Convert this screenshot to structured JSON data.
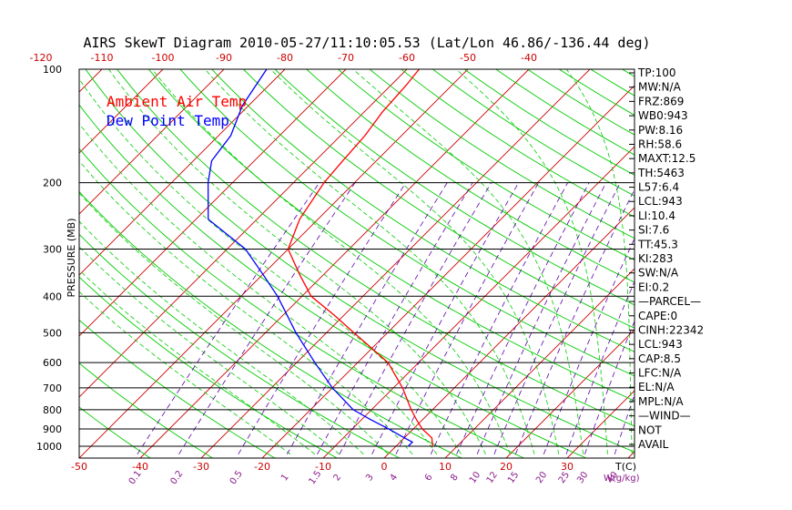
{
  "chart_data": {
    "type": "line",
    "title": "AIRS SkewT Diagram 2010-05-27/11:10:05.53 (Lat/Lon 46.86/-136.44 deg)",
    "ylabel": "PRESSURE (MB)",
    "bottom_axis_label": "T(C)",
    "mixing_ratio_label": "W(g/kg)",
    "y_scale": "log",
    "ylim": [
      1050,
      100
    ],
    "grid": true,
    "pressure_ticks": [
      {
        "p": 100,
        "label": "100"
      },
      {
        "p": 200,
        "label": "200"
      },
      {
        "p": 300,
        "label": "300"
      },
      {
        "p": 400,
        "label": "400"
      },
      {
        "p": 500,
        "label": "500"
      },
      {
        "p": 600,
        "label": "600"
      },
      {
        "p": 700,
        "label": "700"
      },
      {
        "p": 800,
        "label": "800"
      },
      {
        "p": 900,
        "label": "900"
      },
      {
        "p": 1000,
        "label": "1000"
      }
    ],
    "bottom_temp_ticks": [
      "-50",
      "-40",
      "-30",
      "-20",
      "-10",
      "0",
      "10",
      "20",
      "30"
    ],
    "top_temp_ticks": [
      "-120",
      "-110",
      "-100",
      "-90",
      "-80",
      "-70",
      "-60",
      "-50",
      "-40"
    ],
    "mixing_ratio_ticks": [
      "0.1",
      "0.2",
      "0.5",
      "1",
      "1.5",
      "2",
      "3",
      "4",
      "6",
      "8",
      "10",
      "12",
      "15",
      "20",
      "25",
      "30",
      "40"
    ],
    "legend": [
      {
        "name": "Ambient Air Temp",
        "color": "#ff0000"
      },
      {
        "name": "Dew Point Temp",
        "color": "#0000ff"
      }
    ],
    "series": [
      {
        "name": "Ambient Air Temp",
        "color": "#ff0000",
        "points": [
          {
            "p": 1000,
            "t": 6
          },
          {
            "p": 950,
            "t": 4.5
          },
          {
            "p": 900,
            "t": 1.5
          },
          {
            "p": 850,
            "t": -1
          },
          {
            "p": 800,
            "t": -3.5
          },
          {
            "p": 700,
            "t": -8.5
          },
          {
            "p": 600,
            "t": -15
          },
          {
            "p": 550,
            "t": -20
          },
          {
            "p": 500,
            "t": -25.5
          },
          {
            "p": 450,
            "t": -31.5
          },
          {
            "p": 400,
            "t": -38.5
          },
          {
            "p": 350,
            "t": -44
          },
          {
            "p": 300,
            "t": -50
          },
          {
            "p": 250,
            "t": -53
          },
          {
            "p": 200,
            "t": -55
          },
          {
            "p": 175,
            "t": -55.5
          },
          {
            "p": 150,
            "t": -56
          },
          {
            "p": 130,
            "t": -57
          },
          {
            "p": 110,
            "t": -57.5
          },
          {
            "p": 100,
            "t": -58
          }
        ]
      },
      {
        "name": "Dew Point Temp",
        "color": "#0000ff",
        "points": [
          {
            "p": 1000,
            "t": 2
          },
          {
            "p": 975,
            "t": 2
          },
          {
            "p": 950,
            "t": 0
          },
          {
            "p": 900,
            "t": -4
          },
          {
            "p": 850,
            "t": -8.5
          },
          {
            "p": 800,
            "t": -13
          },
          {
            "p": 700,
            "t": -20
          },
          {
            "p": 600,
            "t": -27
          },
          {
            "p": 500,
            "t": -35
          },
          {
            "p": 400,
            "t": -44
          },
          {
            "p": 350,
            "t": -50
          },
          {
            "p": 300,
            "t": -57
          },
          {
            "p": 250,
            "t": -68
          },
          {
            "p": 200,
            "t": -74
          },
          {
            "p": 175,
            "t": -77
          },
          {
            "p": 150,
            "t": -78
          },
          {
            "p": 125,
            "t": -81
          },
          {
            "p": 100,
            "t": -83
          }
        ]
      }
    ]
  },
  "indices": [
    "TP:100",
    "MW:N/A",
    "FRZ:869",
    "WB0:943",
    "PW:8.16",
    "RH:58.6",
    "MAXT:12.5",
    "TH:5463",
    "L57:6.4",
    "LCL:943",
    "LI:10.4",
    "SI:7.6",
    "TT:45.3",
    "KI:283",
    "SW:N/A",
    "EI:0.2",
    "—PARCEL—",
    "CAPE:0",
    "CINH:22342",
    "LCL:943",
    "CAP:8.5",
    "LFC:N/A",
    "EL:N/A",
    "MPL:N/A",
    "—WIND—",
    "NOT",
    "AVAIL"
  ],
  "colors": {
    "isotherm": "#cc0000",
    "dry_adiabat": "#00cc00",
    "moist_adiabat": "#00cc00",
    "mixing_ratio": "#5a00aa",
    "isobar": "#000000"
  }
}
